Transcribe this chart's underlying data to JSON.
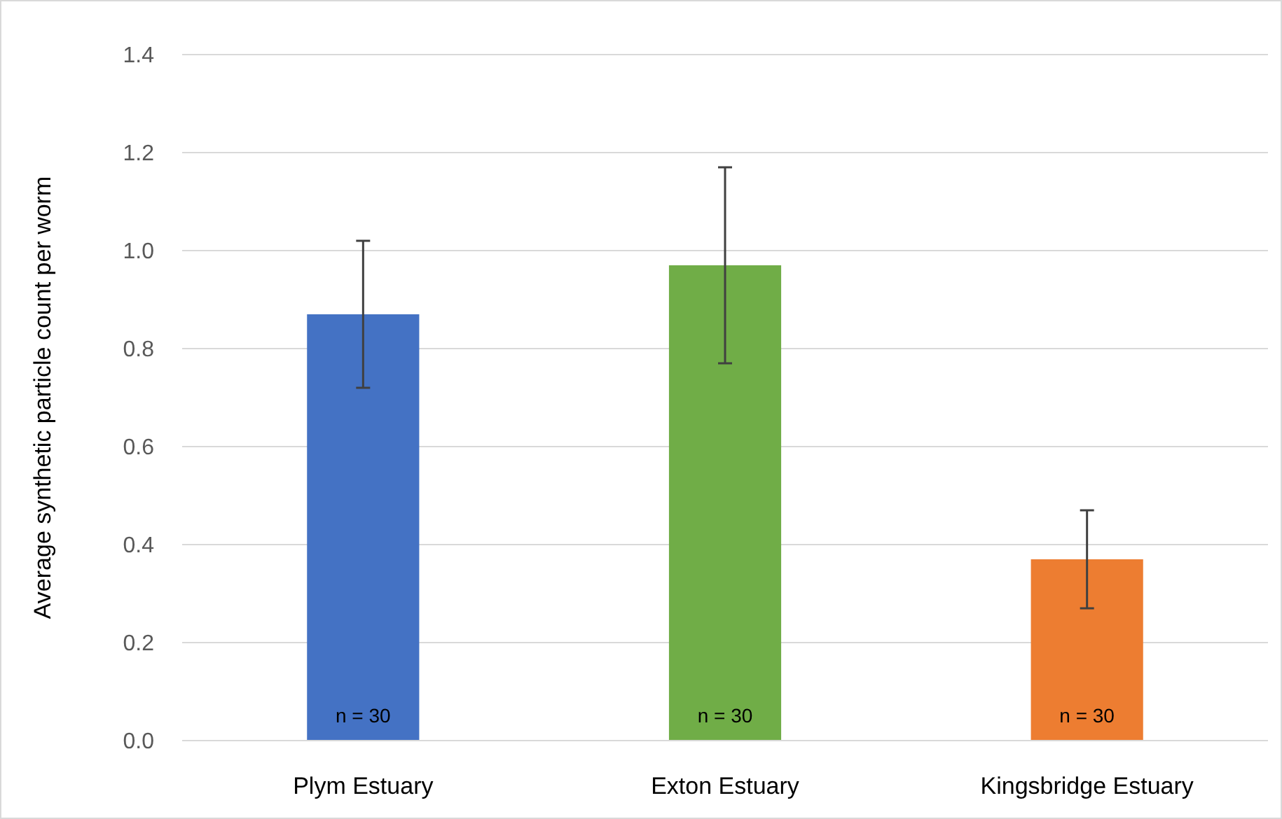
{
  "chart_data": {
    "type": "bar",
    "ylabel": "Average synthetic particle count per worm",
    "categories": [
      "Plym Estuary",
      "Exton Estuary",
      "Kingsbridge Estuary"
    ],
    "values": [
      0.87,
      0.97,
      0.37
    ],
    "colors": [
      "#4472c4",
      "#70ad47",
      "#ed7d31"
    ],
    "errors": [
      0.15,
      0.2,
      0.1
    ],
    "ylim": [
      0,
      1.4
    ],
    "yticks": [
      {
        "value": 0,
        "label": "0.0"
      },
      {
        "value": 0.2,
        "label": "0.2"
      },
      {
        "value": 0.4,
        "label": "0.4"
      },
      {
        "value": 0.6,
        "label": "0.6"
      },
      {
        "value": 0.8,
        "label": "0.8"
      },
      {
        "value": 1,
        "label": "1.0"
      },
      {
        "value": 1.2,
        "label": "1.2"
      },
      {
        "value": 1.4,
        "label": "1.4"
      }
    ],
    "grid": "y",
    "annotations": [
      "n = 30",
      "n = 30",
      "n = 30"
    ]
  }
}
